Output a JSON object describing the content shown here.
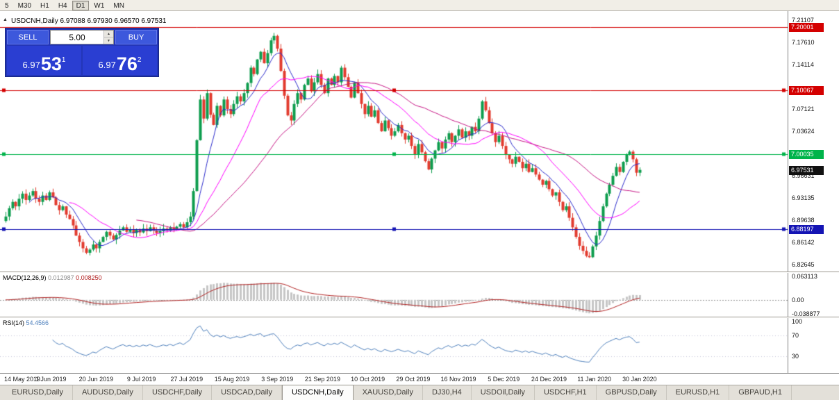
{
  "colors": {
    "up": "#0e9d4e",
    "down": "#e23b2e",
    "ma_fast": "#2929cc",
    "ma_mid": "#ff00ff",
    "ma_slow": "#c71585",
    "hline_red": "#d40000",
    "hline_green": "#00b44a",
    "hline_blue": "#1414b4",
    "chip_current_bg": "#111111",
    "macd_hist": "#c6c6c6",
    "macd_signal": "#b22222",
    "rsi_line": "#4f81bd",
    "rsi_level": "#c3c3d8"
  },
  "icons": {
    "collapse_arrow": "▲",
    "spinner_up": "▲",
    "spinner_down": "▼"
  },
  "toolbar": {
    "periods": [
      "5",
      "M30",
      "H1",
      "H4",
      "D1",
      "W1",
      "MN"
    ],
    "active": "D1"
  },
  "chart": {
    "title": "USDCNH,Daily 6.97088 6.97930 6.96570 6.97531",
    "trade": {
      "sell_label": "SELL",
      "buy_label": "BUY",
      "volume": "5.00",
      "sell_price": {
        "main": "6.97",
        "pips": "53",
        "sup": "1"
      },
      "buy_price": {
        "main": "6.97",
        "pips": "76",
        "sup": "2"
      }
    },
    "price_axis": {
      "range": {
        "min": 6.8155,
        "max": 7.225
      },
      "ticks": [
        "7.21107",
        "7.17610",
        "7.14114",
        "7.10617",
        "7.07121",
        "7.03624",
        "7.00128",
        "6.96631",
        "6.93135",
        "6.89638",
        "6.86142",
        "6.82645"
      ]
    },
    "hlines": [
      {
        "price": 7.20001,
        "label": "7.20001",
        "color_key": "hline_red",
        "selected": false
      },
      {
        "price": 7.10067,
        "label": "7.10067",
        "color_key": "hline_red",
        "selected": true
      },
      {
        "price": 7.00035,
        "label": "7.00035",
        "color_key": "hline_green",
        "selected": true
      },
      {
        "price": 6.88197,
        "label": "6.88197",
        "color_key": "hline_blue",
        "selected": true
      }
    ],
    "current_price": {
      "value": 6.97531,
      "label": "6.97531"
    }
  },
  "macd_panel": {
    "name": "MACD(12,26,9)",
    "value_main": "0.012987",
    "value_signal": "0.008250",
    "range": {
      "min": -0.0455,
      "max": 0.07
    },
    "axis": [
      {
        "label": "0.063113",
        "value": 0.063113
      },
      {
        "label": "0.00",
        "value": 0
      },
      {
        "label": "-0.038877",
        "value": -0.038877
      }
    ],
    "params": {
      "fast": 12,
      "slow": 26,
      "signal": 9
    }
  },
  "rsi_panel": {
    "name": "RSI(14)",
    "value": "54.4566",
    "period": 14,
    "range": {
      "min": -5,
      "max": 105
    },
    "levels": [
      70,
      30
    ],
    "axis": [
      {
        "label": "100",
        "value": 100
      },
      {
        "label": "70",
        "value": 70
      },
      {
        "label": "30",
        "value": 30
      }
    ]
  },
  "time_axis": {
    "labels": [
      "14 May 2019",
      "1 Jun 2019",
      "20 Jun 2019",
      "9 Jul 2019",
      "27 Jul 2019",
      "15 Aug 2019",
      "3 Sep 2019",
      "21 Sep 2019",
      "10 Oct 2019",
      "29 Oct 2019",
      "16 Nov 2019",
      "5 Dec 2019",
      "24 Dec 2019",
      "11 Jan 2020",
      "30 Jan 2020"
    ]
  },
  "tabs": {
    "items": [
      "EURUSD,Daily",
      "AUDUSD,Daily",
      "USDCHF,Daily",
      "USDCAD,Daily",
      "USDCNH,Daily",
      "XAUUSD,Daily",
      "DJ30,H4",
      "USDOil,Daily",
      "USDCHF,H1",
      "GBPUSD,Daily",
      "EURUSD,H1",
      "GBPAUD,H1"
    ],
    "active_index": 4
  },
  "chart_data": {
    "type": "candlestick",
    "symbol": "USDCNH",
    "timeframe": "Daily",
    "first_open": 6.895,
    "closes": [
      6.902,
      6.915,
      6.925,
      6.918,
      6.93,
      6.938,
      6.928,
      6.935,
      6.942,
      6.93,
      6.925,
      6.935,
      6.928,
      6.94,
      6.932,
      6.92,
      6.912,
      6.918,
      6.905,
      6.898,
      6.888,
      6.872,
      6.862,
      6.852,
      6.845,
      6.85,
      6.858,
      6.852,
      6.862,
      6.87,
      6.878,
      6.872,
      6.866,
      6.873,
      6.88,
      6.885,
      6.878,
      6.882,
      6.876,
      6.881,
      6.877,
      6.883,
      6.879,
      6.885,
      6.88,
      6.876,
      6.879,
      6.883,
      6.88,
      6.885,
      6.881,
      6.886,
      6.89,
      6.885,
      6.893,
      6.902,
      6.942,
      7.022,
      7.086,
      7.056,
      7.096,
      7.062,
      7.046,
      7.076,
      7.061,
      7.086,
      7.071,
      7.063,
      7.079,
      7.091,
      7.083,
      7.096,
      7.112,
      7.136,
      7.126,
      7.149,
      7.161,
      7.143,
      7.159,
      7.179,
      7.186,
      7.166,
      7.131,
      7.092,
      7.061,
      7.053,
      7.079,
      7.096,
      7.086,
      7.109,
      7.119,
      7.099,
      7.113,
      7.126,
      7.109,
      7.096,
      7.119,
      7.109,
      7.123,
      7.113,
      7.136,
      7.121,
      7.106,
      7.089,
      7.113,
      7.096,
      7.079,
      7.063,
      7.076,
      7.059,
      7.069,
      7.049,
      7.036,
      7.053,
      7.041,
      7.029,
      7.036,
      7.046,
      7.033,
      7.023,
      7.029,
      7.013,
      6.999,
      7.016,
      7.003,
      6.989,
      6.976,
      6.993,
      7.006,
      7.019,
      7.009,
      7.023,
      7.033,
      7.019,
      7.029,
      7.039,
      7.026,
      7.036,
      7.029,
      7.043,
      7.036,
      7.056,
      7.083,
      7.069,
      7.049,
      7.033,
      7.019,
      7.029,
      7.013,
      6.999,
      6.992,
      6.985,
      6.996,
      6.988,
      6.978,
      6.985,
      6.972,
      6.978,
      6.968,
      6.96,
      6.952,
      6.958,
      6.945,
      6.935,
      6.94,
      6.925,
      6.912,
      6.918,
      6.9,
      6.885,
      6.87,
      6.856,
      6.848,
      6.84,
      6.838,
      6.855,
      6.872,
      6.895,
      6.918,
      6.938,
      6.952,
      6.966,
      6.98,
      6.972,
      6.988,
      6.999,
      7.004,
      6.992,
      6.97088,
      6.97531
    ],
    "last_candle": {
      "open": 6.97088,
      "high": 6.9793,
      "low": 6.9657,
      "close": 6.97531
    },
    "overlays": [
      {
        "name": "MA fast",
        "color_key": "ma_fast",
        "period": 8
      },
      {
        "name": "MA mid",
        "color_key": "ma_mid",
        "period": 20
      },
      {
        "name": "MA slow",
        "color_key": "ma_slow",
        "period": 40
      }
    ]
  }
}
